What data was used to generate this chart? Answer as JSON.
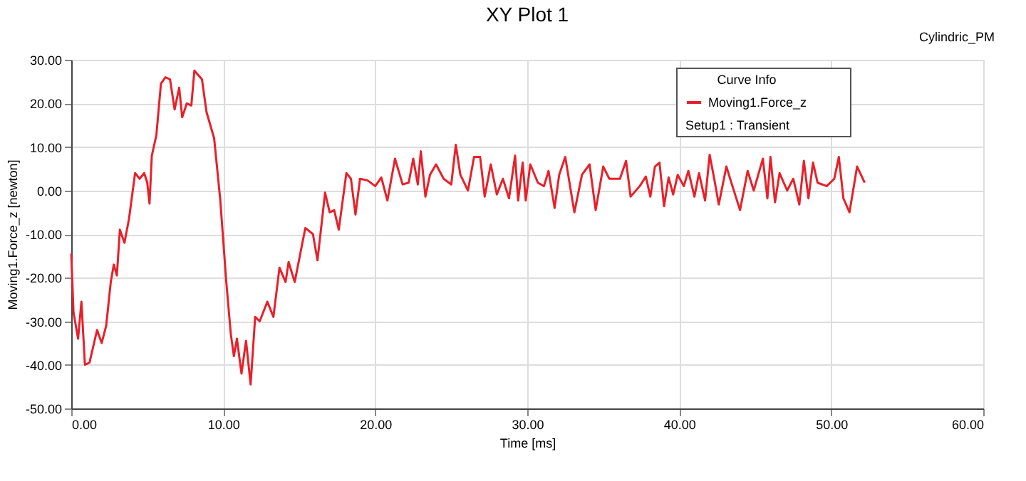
{
  "chart_data": {
    "type": "line",
    "title": "XY Plot 1",
    "xlabel": "Time [ms]",
    "ylabel": "Moving1.Force_z [newton]",
    "legend_title": "Curve Info",
    "annotations": [
      "Cylindric_PM",
      "Setup1 : Transient"
    ],
    "series": [
      {
        "name": "Moving1.Force_z",
        "color": "#e8202a",
        "x": [
          0,
          0.15,
          0.45,
          0.67,
          0.9,
          1.2,
          1.7,
          2.0,
          2.3,
          2.6,
          2.8,
          3.0,
          3.2,
          3.5,
          3.8,
          4.2,
          4.5,
          4.8,
          5.0,
          5.15,
          5.3,
          5.6,
          5.9,
          6.2,
          6.5,
          6.8,
          7.1,
          7.3,
          7.6,
          7.9,
          8.1,
          8.6,
          8.9,
          9.4,
          9.8,
          10.2,
          10.5,
          10.7,
          10.9,
          11.2,
          11.5,
          11.8,
          12.1,
          12.4,
          12.9,
          13.3,
          13.7,
          14.1,
          14.3,
          14.7,
          15.4,
          15.9,
          16.2,
          16.7,
          17.0,
          17.3,
          17.6,
          18.1,
          18.4,
          18.7,
          19.0,
          19.5,
          20.0,
          20.4,
          20.8,
          21.3,
          21.8,
          22.2,
          22.5,
          22.8,
          23.0,
          23.3,
          23.6,
          24.0,
          24.5,
          25.0,
          25.3,
          25.6,
          26.1,
          26.5,
          26.9,
          27.2,
          27.6,
          28.0,
          28.4,
          28.8,
          29.2,
          29.4,
          29.7,
          29.9,
          30.2,
          30.7,
          31.1,
          31.4,
          31.8,
          32.1,
          32.5,
          33.1,
          33.6,
          34.1,
          34.5,
          35.0,
          35.4,
          36.1,
          36.5,
          36.8,
          37.4,
          37.8,
          38.1,
          38.4,
          38.7,
          39.0,
          39.3,
          39.6,
          39.9,
          40.3,
          40.6,
          41.0,
          41.3,
          41.7,
          42.0,
          42.3,
          42.6,
          43.1,
          43.5,
          44.0,
          44.5,
          44.9,
          45.5,
          45.8,
          46.0,
          46.3,
          46.6,
          47.1,
          47.5,
          47.9,
          48.2,
          48.5,
          48.8,
          49.1,
          49.7,
          50.2,
          50.5,
          50.8,
          51.2,
          51.7,
          52.2
        ],
        "values": [
          -14.5,
          -28,
          -34,
          -25.5,
          -40,
          -39.5,
          -32,
          -35,
          -31,
          -21,
          -17,
          -19.5,
          -9,
          -12,
          -6.5,
          4,
          2.7,
          4,
          1.8,
          -3,
          8,
          12.7,
          24.5,
          26,
          25.5,
          18.6,
          23.6,
          16.8,
          20,
          19.5,
          27.5,
          25.5,
          18,
          12,
          -2,
          -21,
          -33,
          -38,
          -34,
          -42,
          -34.5,
          -44.5,
          -29,
          -30,
          -25.5,
          -29,
          -17.7,
          -21,
          -16.4,
          -21,
          -8.6,
          -10,
          -16,
          -0.5,
          -5,
          -4.5,
          -9,
          4,
          2.7,
          -5.5,
          2.7,
          2.3,
          1,
          3,
          -2.3,
          7.3,
          1.4,
          1.8,
          7.3,
          1.4,
          9,
          -1.4,
          3.6,
          6,
          2.7,
          1.4,
          10.5,
          3.6,
          0,
          7.7,
          7.7,
          -1.4,
          6,
          -0.9,
          2.7,
          -1.8,
          8,
          -2.3,
          6.4,
          -2.3,
          6,
          1.8,
          1,
          4.5,
          -4,
          3.6,
          7.7,
          -5,
          3.6,
          6,
          -4.5,
          5.5,
          2.7,
          2.7,
          6.8,
          -1.4,
          1,
          3.2,
          -1.4,
          5.5,
          6.4,
          -3.6,
          3,
          -0.9,
          3.6,
          1,
          4.5,
          -1.4,
          4,
          -2.3,
          8.2,
          2.7,
          -3.2,
          5.5,
          1,
          -4.5,
          4.5,
          0,
          7.3,
          -1.8,
          7.7,
          -2.7,
          4,
          0,
          2.7,
          -3.2,
          6.8,
          -1.8,
          6.4,
          1.8,
          1,
          2.7,
          7.7,
          -1.8,
          -5,
          5.5,
          1.8
        ]
      }
    ],
    "xlim": [
      0,
      60
    ],
    "xticks": [
      {
        "value": 0,
        "label": "0.00"
      },
      {
        "value": 10,
        "label": "10.00"
      },
      {
        "value": 20,
        "label": "20.00"
      },
      {
        "value": 30,
        "label": "30.00"
      },
      {
        "value": 40,
        "label": "40.00"
      },
      {
        "value": 50,
        "label": "50.00"
      },
      {
        "value": 60,
        "label": "60.00"
      }
    ],
    "ylim": [
      -50,
      30
    ],
    "yticks": [
      {
        "value": -50,
        "label": "-50.00"
      },
      {
        "value": -40,
        "label": "-40.00"
      },
      {
        "value": -30,
        "label": "-30.00"
      },
      {
        "value": -20,
        "label": "-20.00"
      },
      {
        "value": -10,
        "label": "-10.00"
      },
      {
        "value": 0,
        "label": "0.00"
      },
      {
        "value": 10,
        "label": "10.00"
      },
      {
        "value": 20,
        "label": "20.00"
      },
      {
        "value": 30,
        "label": "30.00"
      }
    ],
    "grid": true,
    "legend": "top right",
    "marker": "none",
    "line_style": "solid"
  }
}
